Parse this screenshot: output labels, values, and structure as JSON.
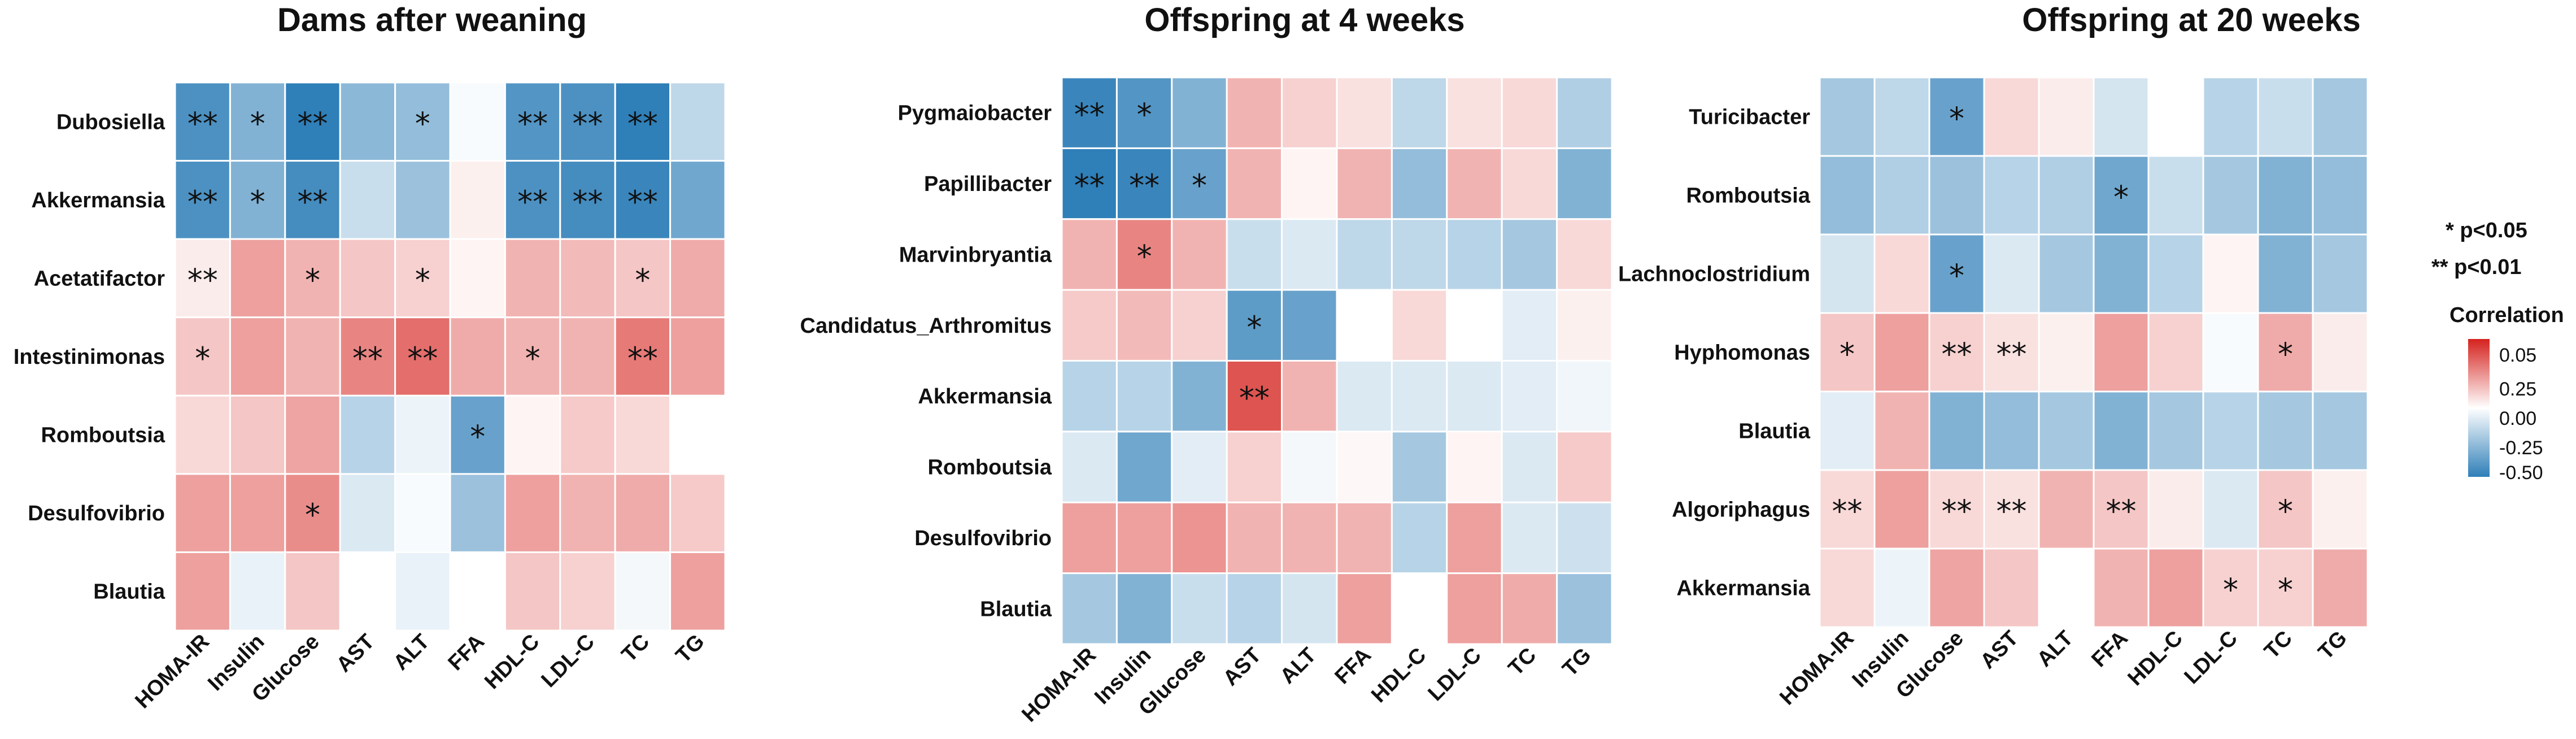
{
  "chart_data": [
    {
      "type": "heatmap",
      "title": "Dams after weaning",
      "columns": [
        "HOMA-IR",
        "Insulin",
        "Glucose",
        "AST",
        "ALT",
        "FFA",
        "HDL-C",
        "LDL-C",
        "TC",
        "TG"
      ],
      "rows": [
        "Dubosiella",
        "Akkermansia",
        "Acetatifactor",
        "Intestinimonas",
        "Romboutsia",
        "Desulfovibrio",
        "Blautia"
      ],
      "values": [
        [
          -0.5,
          -0.35,
          -0.58,
          -0.32,
          -0.3,
          -0.02,
          -0.48,
          -0.5,
          -0.58,
          -0.18
        ],
        [
          -0.5,
          -0.35,
          -0.52,
          -0.15,
          -0.28,
          0.04,
          -0.5,
          -0.52,
          -0.55,
          -0.4
        ],
        [
          0.05,
          0.25,
          0.2,
          0.15,
          0.12,
          0.03,
          0.2,
          0.18,
          0.15,
          0.22
        ],
        [
          0.15,
          0.25,
          0.2,
          0.32,
          0.38,
          0.22,
          0.2,
          0.2,
          0.35,
          0.25
        ],
        [
          0.1,
          0.15,
          0.24,
          -0.2,
          -0.05,
          -0.42,
          0.03,
          0.14,
          0.1,
          0.0
        ],
        [
          0.25,
          0.25,
          0.3,
          -0.1,
          -0.02,
          -0.28,
          0.25,
          0.2,
          0.22,
          0.14
        ],
        [
          0.25,
          -0.06,
          0.15,
          0.0,
          -0.06,
          0.0,
          0.15,
          0.12,
          -0.03,
          0.25
        ]
      ],
      "stars": [
        [
          "**",
          "*",
          "**",
          "",
          "*",
          "",
          "**",
          "**",
          "**",
          ""
        ],
        [
          "**",
          "*",
          "**",
          "",
          "",
          "",
          "**",
          "**",
          "**",
          ""
        ],
        [
          "**",
          "",
          "*",
          "",
          "*",
          "",
          "",
          "",
          "*",
          ""
        ],
        [
          "*",
          "",
          "",
          "**",
          "**",
          "",
          "*",
          "",
          "**",
          ""
        ],
        [
          "",
          "",
          "",
          "",
          "",
          "*",
          "",
          "",
          "",
          ""
        ],
        [
          "",
          "",
          "*",
          "",
          "",
          "",
          "",
          "",
          "",
          ""
        ],
        [
          "",
          "",
          "",
          "",
          "",
          "",
          "",
          "",
          "",
          ""
        ]
      ]
    },
    {
      "type": "heatmap",
      "title": "Offspring at 4 weeks",
      "columns": [
        "HOMA-IR",
        "Insulin",
        "Glucose",
        "AST",
        "ALT",
        "FFA",
        "HDL-C",
        "LDL-C",
        "TC",
        "TG"
      ],
      "rows": [
        "Pygmaiobacter",
        "Papillibacter",
        "Marvinbryantia",
        "Candidatus_Arthromitus",
        "Akkermansia",
        "Romboutsia",
        "Desulfovibrio",
        "Blautia"
      ],
      "values": [
        [
          -0.55,
          -0.48,
          -0.35,
          0.2,
          0.12,
          0.08,
          -0.18,
          0.08,
          0.1,
          -0.22
        ],
        [
          -0.58,
          -0.55,
          -0.42,
          0.2,
          0.03,
          0.2,
          -0.3,
          0.2,
          0.1,
          -0.35
        ],
        [
          0.2,
          0.32,
          0.2,
          -0.15,
          -0.1,
          -0.18,
          -0.18,
          -0.2,
          -0.25,
          0.1
        ],
        [
          0.14,
          0.18,
          0.12,
          -0.45,
          -0.42,
          0.0,
          0.1,
          0.0,
          -0.08,
          0.04
        ],
        [
          -0.2,
          -0.2,
          -0.35,
          0.45,
          0.2,
          -0.1,
          -0.1,
          -0.1,
          -0.08,
          -0.04
        ],
        [
          -0.1,
          -0.4,
          -0.08,
          0.12,
          -0.03,
          0.02,
          -0.25,
          0.03,
          -0.1,
          0.14
        ],
        [
          0.25,
          0.25,
          0.28,
          0.2,
          0.2,
          0.2,
          -0.2,
          0.25,
          -0.1,
          -0.14
        ],
        [
          -0.25,
          -0.35,
          -0.15,
          -0.2,
          -0.12,
          0.25,
          0.0,
          0.25,
          0.22,
          -0.28
        ]
      ],
      "stars": [
        [
          "**",
          "*",
          "",
          "",
          "",
          "",
          "",
          "",
          "",
          ""
        ],
        [
          "**",
          "**",
          "*",
          "",
          "",
          "",
          "",
          "",
          "",
          ""
        ],
        [
          "",
          "*",
          "",
          "",
          "",
          "",
          "",
          "",
          "",
          ""
        ],
        [
          "",
          "",
          "",
          "*",
          "",
          "",
          "",
          "",
          "",
          ""
        ],
        [
          "",
          "",
          "",
          "**",
          "",
          "",
          "",
          "",
          "",
          ""
        ],
        [
          "",
          "",
          "",
          "",
          "",
          "",
          "",
          "",
          "",
          ""
        ],
        [
          "",
          "",
          "",
          "",
          "",
          "",
          "",
          "",
          "",
          ""
        ],
        [
          "",
          "",
          "",
          "",
          "",
          "",
          "",
          "",
          "",
          ""
        ]
      ]
    },
    {
      "type": "heatmap",
      "title": "Offspring at 20 weeks",
      "columns": [
        "HOMA-IR",
        "Insulin",
        "Glucose",
        "AST",
        "ALT",
        "FFA",
        "HDL-C",
        "LDL-C",
        "TC",
        "TG"
      ],
      "rows": [
        "Turicibacter",
        "Romboutsia",
        "Lachnoclostridium",
        "Hyphomonas",
        "Blautia",
        "Algoriphagus",
        "Akkermansia"
      ],
      "values": [
        [
          -0.25,
          -0.18,
          -0.42,
          0.1,
          0.05,
          -0.12,
          0.0,
          -0.2,
          -0.15,
          -0.25
        ],
        [
          -0.3,
          -0.22,
          -0.28,
          -0.2,
          -0.22,
          -0.4,
          -0.15,
          -0.25,
          -0.35,
          -0.3
        ],
        [
          -0.12,
          0.1,
          -0.42,
          -0.1,
          -0.25,
          -0.35,
          -0.2,
          0.03,
          -0.35,
          -0.25
        ],
        [
          0.15,
          0.25,
          0.12,
          0.08,
          0.04,
          0.25,
          0.12,
          -0.02,
          0.22,
          0.05
        ],
        [
          -0.08,
          0.2,
          -0.35,
          -0.3,
          -0.25,
          -0.35,
          -0.25,
          -0.2,
          -0.25,
          -0.25
        ],
        [
          0.1,
          0.25,
          0.1,
          0.08,
          0.2,
          0.15,
          0.05,
          -0.1,
          0.15,
          0.04
        ],
        [
          0.1,
          -0.05,
          0.24,
          0.15,
          0.0,
          0.2,
          0.25,
          0.12,
          0.12,
          0.22
        ]
      ],
      "stars": [
        [
          "",
          "",
          "*",
          "",
          "",
          "",
          "",
          "",
          "",
          ""
        ],
        [
          "",
          "",
          "",
          "",
          "",
          "*",
          "",
          "",
          "",
          ""
        ],
        [
          "",
          "",
          "*",
          "",
          "",
          "",
          "",
          "",
          "",
          ""
        ],
        [
          "*",
          "",
          "**",
          "**",
          "",
          "",
          "",
          "",
          "*",
          ""
        ],
        [
          "",
          "",
          "",
          "",
          "",
          "",
          "",
          "",
          "",
          ""
        ],
        [
          "**",
          "",
          "**",
          "**",
          "",
          "**",
          "",
          "",
          "*",
          ""
        ],
        [
          "",
          "",
          "",
          "",
          "",
          "",
          "",
          "*",
          "*",
          ""
        ]
      ]
    }
  ],
  "legend": {
    "sig1": "* p<0.05",
    "sig2": "** p<0.01",
    "title": "Correlation",
    "ticks": [
      "0.05",
      "0.25",
      "0.00",
      "-0.25",
      "-0.50"
    ],
    "colors": {
      "neg": "#2f7fb8",
      "mid": "#ffffff",
      "pos": "#d5221e"
    }
  }
}
